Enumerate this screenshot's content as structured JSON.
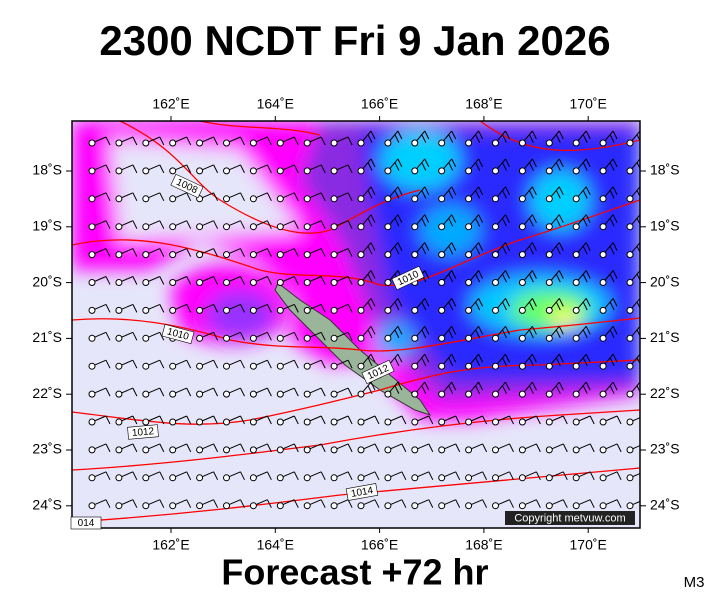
{
  "header": {
    "title": "2300 NCDT Fri 9 Jan 2026"
  },
  "map": {
    "lon_labels": [
      "162˚E",
      "164˚E",
      "166˚E",
      "168˚E",
      "170˚E"
    ],
    "lat_labels": [
      "18˚S",
      "19˚S",
      "20˚S",
      "21˚S",
      "22˚S",
      "23˚S",
      "24˚S"
    ],
    "isobar_labels": [
      "1008",
      "1010",
      "1010",
      "1012",
      "1012",
      "1014",
      "014"
    ],
    "copyright": "Copyright metvuw.com"
  },
  "footer": {
    "forecast": "Forecast +72 hr",
    "model": "M3"
  }
}
